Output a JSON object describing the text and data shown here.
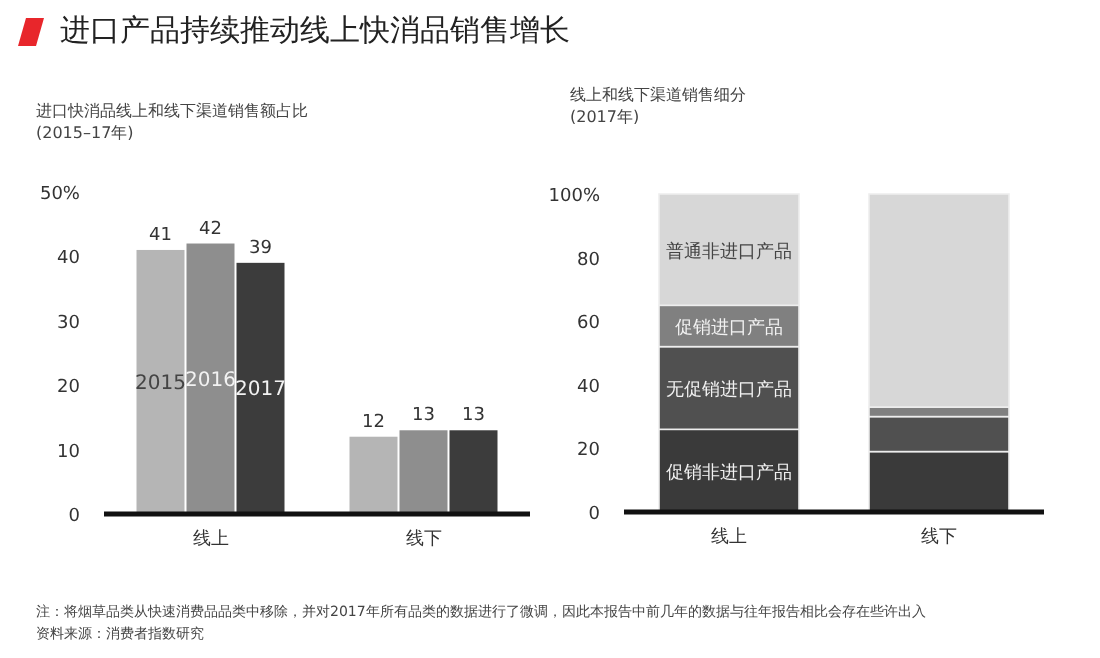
{
  "chart_data": [
    {
      "type": "bar",
      "title": "进口产品持续推动线上快消品销售增长",
      "subtitle": "进口快消品线上和线下渠道销售额占比\n(2015–17年)",
      "categories": [
        "线上",
        "线下"
      ],
      "series": [
        {
          "name": "2015",
          "color": "#b5b5b5",
          "values": [
            41,
            12
          ]
        },
        {
          "name": "2016",
          "color": "#8e8e8e",
          "values": [
            42,
            13
          ]
        },
        {
          "name": "2017",
          "color": "#3c3c3c",
          "values": [
            39,
            13
          ]
        }
      ],
      "data_labels": true,
      "ylim": [
        0,
        50
      ],
      "yticks": [
        0,
        10,
        20,
        30,
        40,
        {
          "value": 50,
          "label": "50%"
        }
      ],
      "annotations": [
        "注：将烟草品类从快速消费品品类中移除，并对2017年所有品类的数据进行了微调，因此本报告中前几年的数据与往年报告相比会存在些许出入",
        "资料来源：消费者指数研究"
      ]
    },
    {
      "type": "bar",
      "stacked": true,
      "subtitle": "线上和线下渠道销售细分\n(2017年)",
      "categories": [
        "线上",
        "线下"
      ],
      "series": [
        {
          "name": "促销非进口产品",
          "color": "#3a3a3a",
          "values": [
            26,
            19
          ]
        },
        {
          "name": "无促销进口产品",
          "color": "#505050",
          "values": [
            26,
            11
          ]
        },
        {
          "name": "促销进口产品",
          "color": "#808080",
          "values": [
            13,
            3
          ]
        },
        {
          "name": "普通非进口产品",
          "color": "#d7d7d7",
          "values": [
            35,
            67
          ]
        }
      ],
      "ylim": [
        0,
        100
      ],
      "yticks": [
        0,
        20,
        40,
        60,
        80,
        {
          "value": 100,
          "label": "100%"
        }
      ]
    }
  ]
}
